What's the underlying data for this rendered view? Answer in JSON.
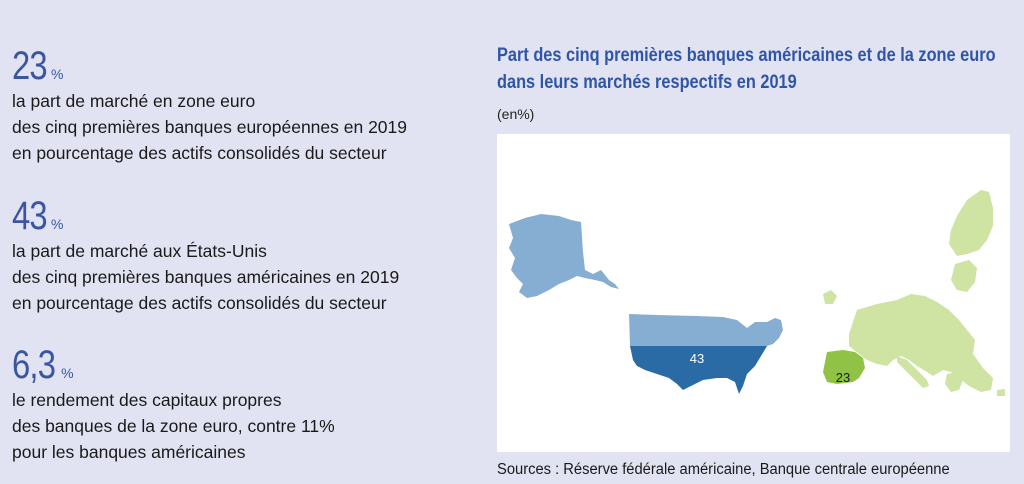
{
  "stats": [
    {
      "value": "23",
      "unit": "%",
      "lines": [
        "la part de marché en zone euro",
        "des cinq premières banques européennes en 2019",
        "en pourcentage des actifs consolidés du secteur"
      ]
    },
    {
      "value": "43",
      "unit": "%",
      "lines": [
        "la part de marché aux États-Unis",
        "des cinq premières banques américaines en 2019",
        "en pourcentage des actifs consolidés du secteur"
      ]
    },
    {
      "value": "6,3",
      "unit": "%",
      "lines": [
        "le rendement des capitaux propres",
        "des banques de la zone euro, contre 11%",
        "pour les banques américaines"
      ]
    }
  ],
  "colors": {
    "background": "#e1e2f2",
    "accent": "#3a56a0",
    "us_light": "#86aed2",
    "us_dark": "#2a6aa5",
    "eu_light": "#cfe3a2",
    "eu_dark": "#8fc245"
  },
  "chart_data": {
    "type": "map",
    "title_lines": [
      "Part des cinq premières banques américaines et de la zone euro",
      "dans leurs marchés respectifs en 2019"
    ],
    "unit": "(en%)",
    "regions": [
      {
        "label": "43",
        "value": 43
      },
      {
        "label": "23",
        "value": 23
      }
    ],
    "source": "Sources : Réserve fédérale américaine, Banque centrale européenne"
  }
}
